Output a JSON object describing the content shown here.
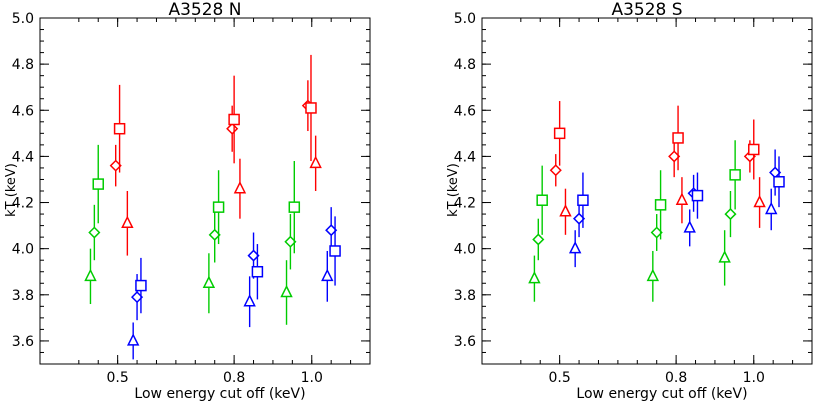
{
  "chart_data": [
    {
      "type": "scatter",
      "title": "A3528 N",
      "xlabel": "Low energy cut off (keV)",
      "ylabel": "kT (keV)",
      "ylim": [
        3.5,
        5.0
      ],
      "xlim": [
        0.3,
        1.15
      ],
      "x_scale": "linear",
      "x_ticks": [
        0.5,
        0.8,
        1.0
      ],
      "x_tick_labels": [
        "0.5",
        "0.8",
        "1.0"
      ],
      "y_ticks": [
        3.6,
        3.8,
        4.0,
        4.2,
        4.4,
        4.6,
        4.8,
        5.0
      ],
      "y_tick_labels": [
        "3.6",
        "3.8",
        "4.0",
        "4.2",
        "4.4",
        "4.6",
        "4.8",
        "5.0"
      ],
      "grid": false,
      "series": [
        {
          "color": "#ff0000",
          "points": [
            {
              "x": 0.495,
              "y": 4.36,
              "yerr": 0.09,
              "marker": "diamond"
            },
            {
              "x": 0.505,
              "y": 4.52,
              "yerr": 0.19,
              "marker": "square"
            },
            {
              "x": 0.525,
              "y": 4.11,
              "yerr": 0.14,
              "marker": "triangle"
            },
            {
              "x": 0.795,
              "y": 4.52,
              "yerr": 0.1,
              "marker": "diamond"
            },
            {
              "x": 0.8,
              "y": 4.56,
              "yerr": 0.19,
              "marker": "square"
            },
            {
              "x": 0.815,
              "y": 4.26,
              "yerr": 0.13,
              "marker": "triangle"
            },
            {
              "x": 0.99,
              "y": 4.62,
              "yerr": 0.11,
              "marker": "diamond"
            },
            {
              "x": 0.998,
              "y": 4.61,
              "yerr": 0.23,
              "marker": "square"
            },
            {
              "x": 1.01,
              "y": 4.37,
              "yerr": 0.12,
              "marker": "triangle"
            }
          ]
        },
        {
          "color": "#00cc00",
          "points": [
            {
              "x": 0.43,
              "y": 3.88,
              "yerr": 0.12,
              "marker": "triangle"
            },
            {
              "x": 0.44,
              "y": 4.07,
              "yerr": 0.12,
              "marker": "diamond"
            },
            {
              "x": 0.45,
              "y": 4.28,
              "yerr": 0.17,
              "marker": "square"
            },
            {
              "x": 0.735,
              "y": 3.85,
              "yerr": 0.13,
              "marker": "triangle"
            },
            {
              "x": 0.75,
              "y": 4.06,
              "yerr": 0.12,
              "marker": "diamond"
            },
            {
              "x": 0.76,
              "y": 4.18,
              "yerr": 0.16,
              "marker": "square"
            },
            {
              "x": 0.935,
              "y": 3.81,
              "yerr": 0.14,
              "marker": "triangle"
            },
            {
              "x": 0.945,
              "y": 4.03,
              "yerr": 0.12,
              "marker": "diamond"
            },
            {
              "x": 0.955,
              "y": 4.18,
              "yerr": 0.2,
              "marker": "square"
            }
          ]
        },
        {
          "color": "#0000ff",
          "points": [
            {
              "x": 0.54,
              "y": 3.6,
              "yerr": 0.08,
              "marker": "triangle"
            },
            {
              "x": 0.55,
              "y": 3.79,
              "yerr": 0.1,
              "marker": "diamond"
            },
            {
              "x": 0.56,
              "y": 3.84,
              "yerr": 0.12,
              "marker": "square"
            },
            {
              "x": 0.84,
              "y": 3.77,
              "yerr": 0.11,
              "marker": "triangle"
            },
            {
              "x": 0.85,
              "y": 3.97,
              "yerr": 0.1,
              "marker": "diamond"
            },
            {
              "x": 0.86,
              "y": 3.9,
              "yerr": 0.12,
              "marker": "square"
            },
            {
              "x": 1.04,
              "y": 3.88,
              "yerr": 0.11,
              "marker": "triangle"
            },
            {
              "x": 1.05,
              "y": 4.08,
              "yerr": 0.1,
              "marker": "diamond"
            },
            {
              "x": 1.06,
              "y": 3.99,
              "yerr": 0.15,
              "marker": "square"
            }
          ]
        }
      ]
    },
    {
      "type": "scatter",
      "title": "A3528 S",
      "xlabel": "Low energy cut off (keV)",
      "ylabel": "kT (keV)",
      "ylim": [
        3.5,
        5.0
      ],
      "xlim": [
        0.3,
        1.15
      ],
      "x_scale": "linear",
      "x_ticks": [
        0.5,
        0.8,
        1.0
      ],
      "x_tick_labels": [
        "0.5",
        "0.8",
        "1.0"
      ],
      "y_ticks": [
        3.6,
        3.8,
        4.0,
        4.2,
        4.4,
        4.6,
        4.8,
        5.0
      ],
      "y_tick_labels": [
        "3.6",
        "3.8",
        "4.0",
        "4.2",
        "4.4",
        "4.6",
        "4.8",
        "5.0"
      ],
      "grid": false,
      "series": [
        {
          "color": "#ff0000",
          "points": [
            {
              "x": 0.49,
              "y": 4.34,
              "yerr": 0.07,
              "marker": "diamond"
            },
            {
              "x": 0.5,
              "y": 4.5,
              "yerr": 0.14,
              "marker": "square"
            },
            {
              "x": 0.515,
              "y": 4.16,
              "yerr": 0.1,
              "marker": "triangle"
            },
            {
              "x": 0.795,
              "y": 4.4,
              "yerr": 0.09,
              "marker": "diamond"
            },
            {
              "x": 0.805,
              "y": 4.48,
              "yerr": 0.14,
              "marker": "square"
            },
            {
              "x": 0.815,
              "y": 4.21,
              "yerr": 0.1,
              "marker": "triangle"
            },
            {
              "x": 0.99,
              "y": 4.4,
              "yerr": 0.07,
              "marker": "diamond"
            },
            {
              "x": 1.0,
              "y": 4.43,
              "yerr": 0.13,
              "marker": "square"
            },
            {
              "x": 1.015,
              "y": 4.2,
              "yerr": 0.11,
              "marker": "triangle"
            }
          ]
        },
        {
          "color": "#00cc00",
          "points": [
            {
              "x": 0.435,
              "y": 3.87,
              "yerr": 0.1,
              "marker": "triangle"
            },
            {
              "x": 0.445,
              "y": 4.04,
              "yerr": 0.09,
              "marker": "diamond"
            },
            {
              "x": 0.455,
              "y": 4.21,
              "yerr": 0.15,
              "marker": "square"
            },
            {
              "x": 0.74,
              "y": 3.88,
              "yerr": 0.11,
              "marker": "triangle"
            },
            {
              "x": 0.75,
              "y": 4.07,
              "yerr": 0.08,
              "marker": "diamond"
            },
            {
              "x": 0.76,
              "y": 4.19,
              "yerr": 0.15,
              "marker": "square"
            },
            {
              "x": 0.925,
              "y": 3.96,
              "yerr": 0.12,
              "marker": "triangle"
            },
            {
              "x": 0.94,
              "y": 4.15,
              "yerr": 0.1,
              "marker": "diamond"
            },
            {
              "x": 0.952,
              "y": 4.32,
              "yerr": 0.15,
              "marker": "square"
            }
          ]
        },
        {
          "color": "#0000ff",
          "points": [
            {
              "x": 0.54,
              "y": 4.0,
              "yerr": 0.08,
              "marker": "triangle"
            },
            {
              "x": 0.55,
              "y": 4.13,
              "yerr": 0.08,
              "marker": "diamond"
            },
            {
              "x": 0.56,
              "y": 4.21,
              "yerr": 0.12,
              "marker": "square"
            },
            {
              "x": 0.835,
              "y": 4.09,
              "yerr": 0.08,
              "marker": "triangle"
            },
            {
              "x": 0.845,
              "y": 4.24,
              "yerr": 0.08,
              "marker": "diamond"
            },
            {
              "x": 0.855,
              "y": 4.23,
              "yerr": 0.1,
              "marker": "square"
            },
            {
              "x": 1.045,
              "y": 4.17,
              "yerr": 0.09,
              "marker": "triangle"
            },
            {
              "x": 1.055,
              "y": 4.33,
              "yerr": 0.1,
              "marker": "diamond"
            },
            {
              "x": 1.065,
              "y": 4.29,
              "yerr": 0.11,
              "marker": "square"
            }
          ]
        }
      ]
    }
  ]
}
